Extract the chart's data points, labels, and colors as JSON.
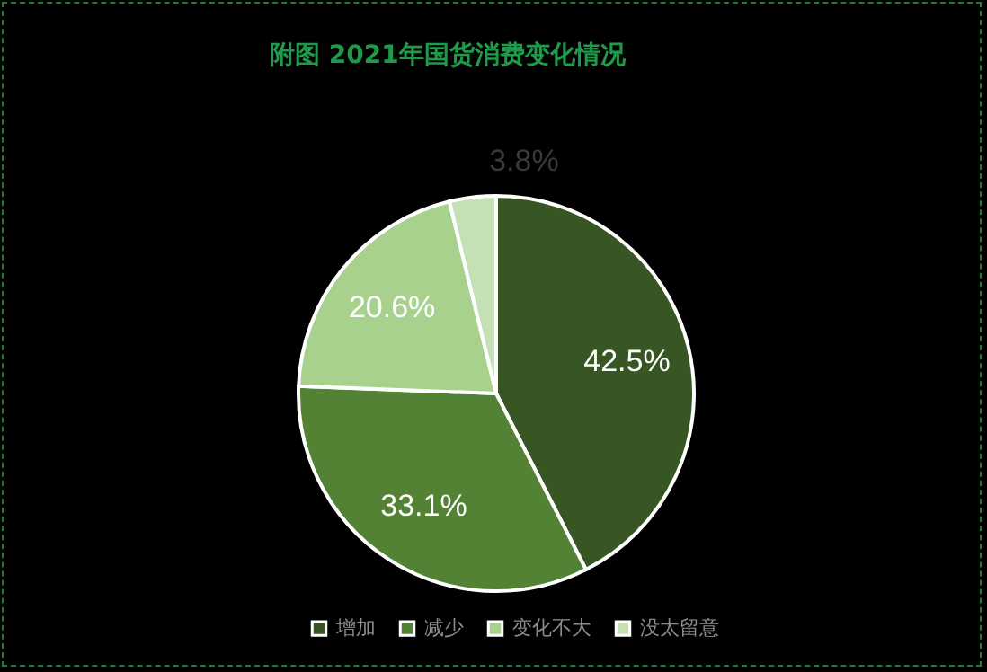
{
  "chart_data": {
    "type": "pie",
    "title": "附图  2021年国货消费变化情况",
    "categories": [
      "增加",
      "减少",
      "变化不大",
      "没太留意"
    ],
    "values": [
      42.5,
      33.1,
      20.6,
      3.8
    ],
    "colors": [
      "#375623",
      "#548235",
      "#a9d18e",
      "#c5e0b4"
    ],
    "value_labels": [
      "42.5%",
      "33.1%",
      "20.6%",
      "3.8%"
    ],
    "legend": "bottom"
  }
}
